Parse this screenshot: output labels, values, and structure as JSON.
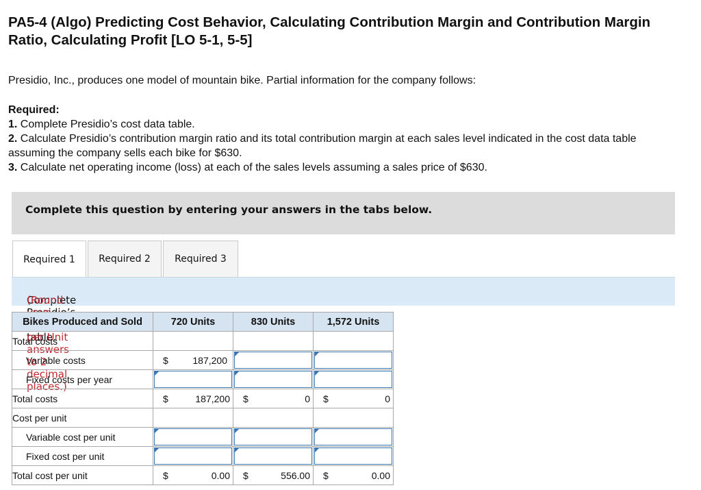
{
  "title": "PA5-4 (Algo) Predicting Cost Behavior, Calculating Contribution Margin and Contribution Margin Ratio, Calculating Profit [LO 5-1, 5-5]",
  "intro": "Presidio, Inc., produces one model of mountain bike. Partial information for the company follows:",
  "required": {
    "heading": "Required:",
    "items": [
      {
        "num": "1.",
        "text": " Complete Presidio’s cost data table."
      },
      {
        "num": "2.",
        "text": " Calculate Presidio’s contribution margin ratio and its total contribution margin at each sales level indicated in the cost data table assuming the company sells each bike for $630."
      },
      {
        "num": "3.",
        "text": " Calculate net operating income (loss) at each of the sales levels assuming a sales price of $630."
      }
    ]
  },
  "banner": "Complete this question by entering your answers in the tabs below.",
  "tabs": [
    "Required 1",
    "Required 2",
    "Required 3"
  ],
  "instruction": {
    "text": "Complete Presidio’s cost data table.",
    "note": "(Round your Cost per Unit answers to 2 decimal places.)"
  },
  "table": {
    "headers": [
      "Bikes Produced and Sold",
      "720 Units",
      "830 Units",
      "1,572 Units"
    ],
    "currency": "$",
    "rows": {
      "total_costs_header": "Total costs",
      "variable_costs": {
        "label": "Variable costs",
        "c1": "187,200"
      },
      "fixed_costs": {
        "label": "Fixed costs per year"
      },
      "total_costs": {
        "label": "Total costs",
        "c1": "187,200",
        "c2": "0",
        "c3": "0"
      },
      "cost_per_unit_header": "Cost per unit",
      "variable_cost_per_unit": {
        "label": "Variable cost per unit"
      },
      "fixed_cost_per_unit": {
        "label": "Fixed cost per unit"
      },
      "total_cost_per_unit": {
        "label": "Total cost per unit",
        "c1": "0.00",
        "c2": "556.00",
        "c3": "0.00"
      }
    }
  },
  "colors": {
    "accent_blue": "#3c76b3",
    "note_red": "#c0282d",
    "header_bg": "#d6e4f1",
    "banner_bg": "#dcdcdc",
    "instr_bg": "#dbeaf7"
  }
}
